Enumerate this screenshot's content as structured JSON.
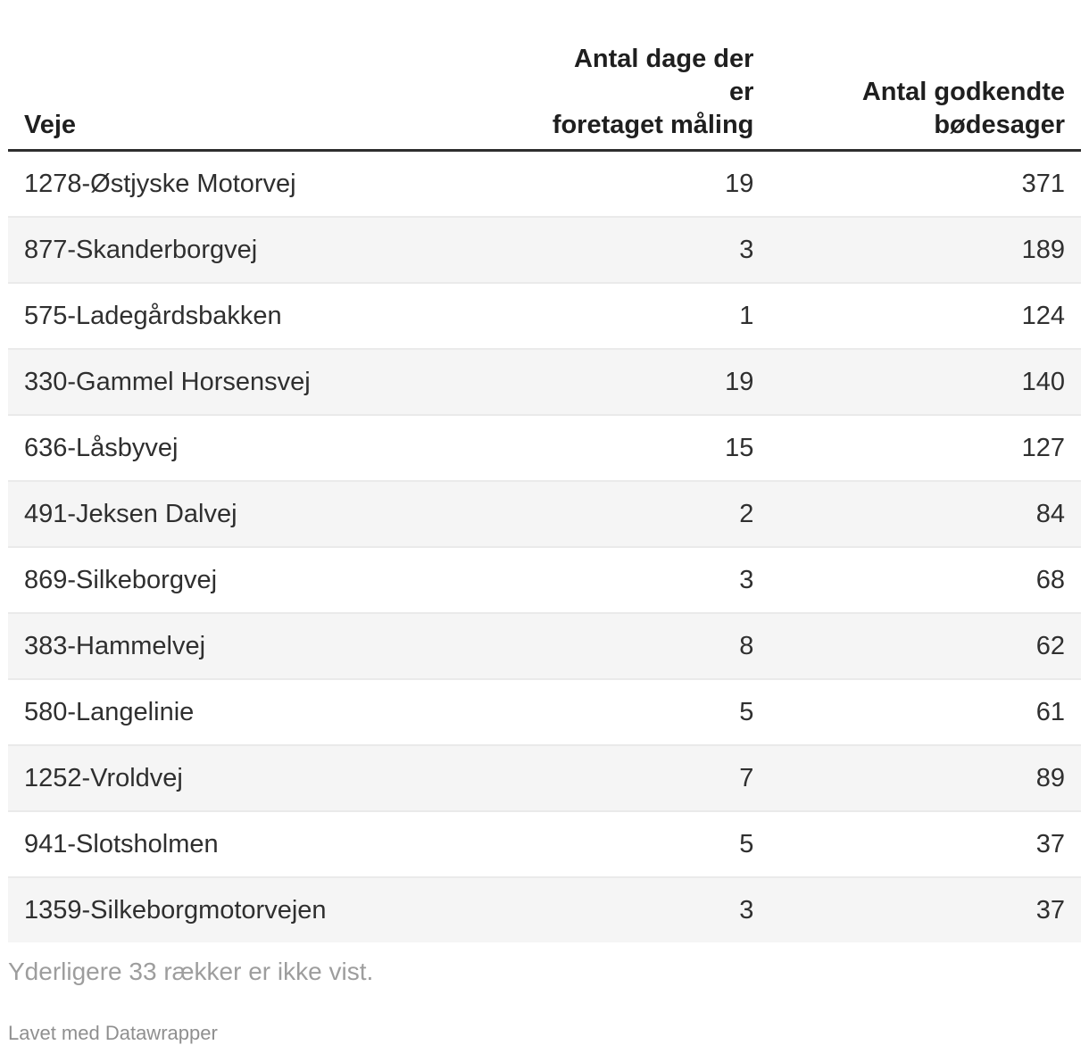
{
  "chart_data": {
    "type": "table",
    "title": "",
    "columns": [
      {
        "label": "Veje",
        "align": "left"
      },
      {
        "label": "Antal dage der er\nforetaget måling",
        "align": "right"
      },
      {
        "label": "Antal godkendte\nbødesager",
        "align": "right"
      }
    ],
    "rows": [
      [
        "1278-Østjyske Motorvej",
        19,
        371
      ],
      [
        "877-Skanderborgvej",
        3,
        189
      ],
      [
        "575-Ladegårdsbakken",
        1,
        124
      ],
      [
        "330-Gammel Horsensvej",
        19,
        140
      ],
      [
        "636-Låsbyvej",
        15,
        127
      ],
      [
        "491-Jeksen Dalvej",
        2,
        84
      ],
      [
        "869-Silkeborgvej",
        3,
        68
      ],
      [
        "383-Hammelvej",
        8,
        62
      ],
      [
        "580-Langelinie",
        5,
        61
      ],
      [
        "1252-Vroldvej",
        7,
        89
      ],
      [
        "941-Slotsholmen",
        5,
        37
      ],
      [
        "1359-Silkeborgmotorvejen",
        3,
        37
      ]
    ],
    "footer_note": "Yderligere 33 rækker er ikke vist.",
    "attribution": "Lavet med Datawrapper",
    "layout_hints": {
      "striped_rows": true,
      "stripe_on": "even",
      "header_rule": "thick-dark",
      "grid": "horizontal-only"
    }
  },
  "colors": {
    "background": "#ffffff",
    "stripe": "#f5f5f5",
    "header_border": "#2e2e2e",
    "row_border": "#eaeaea",
    "header_text": "#1f1f1f",
    "body_text": "#2f2f2f",
    "muted_text": "#9d9d9d",
    "attribution_text": "#8f8f8f"
  }
}
